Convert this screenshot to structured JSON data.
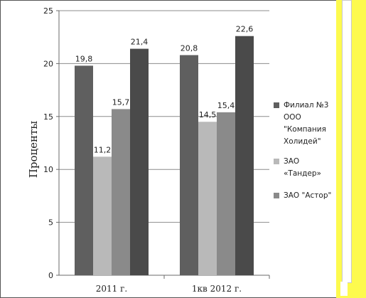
{
  "chart_data": {
    "type": "bar",
    "title": "",
    "xlabel": "",
    "ylabel": "Проценты",
    "ylim": [
      0,
      25
    ],
    "yticks": [
      "0",
      "5",
      "10",
      "15",
      "20",
      "25"
    ],
    "grid": true,
    "legend_position": "right",
    "categories": [
      "2011 г.",
      "1кв 2012 г."
    ],
    "series": [
      {
        "name": "Филиал №3 ООО \"Компания Холидей\"",
        "values": [
          19.8,
          20.8
        ],
        "labels": [
          "19,8",
          "20,8"
        ],
        "color": "#5f5f5f"
      },
      {
        "name": "ЗАО «Тандер»",
        "values": [
          11.2,
          14.5
        ],
        "labels": [
          "11,2",
          "14,5"
        ],
        "color": "#b9b9b9"
      },
      {
        "name": "ЗАО \"Астор\"",
        "values": [
          15.7,
          15.4
        ],
        "labels": [
          "15,7",
          "15,4"
        ],
        "color": "#8a8a8a"
      },
      {
        "name": "",
        "values": [
          21.4,
          22.6
        ],
        "labels": [
          "21,4",
          "22,6"
        ],
        "color": "#4a4a4a"
      }
    ]
  }
}
